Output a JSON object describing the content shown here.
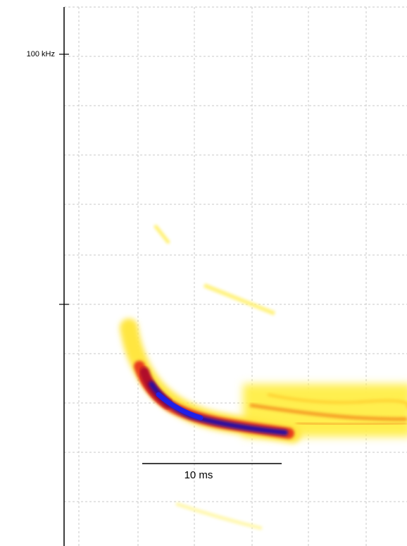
{
  "axis": {
    "label": "100 kHz"
  },
  "scale_bar": {
    "label": "10 ms"
  }
}
